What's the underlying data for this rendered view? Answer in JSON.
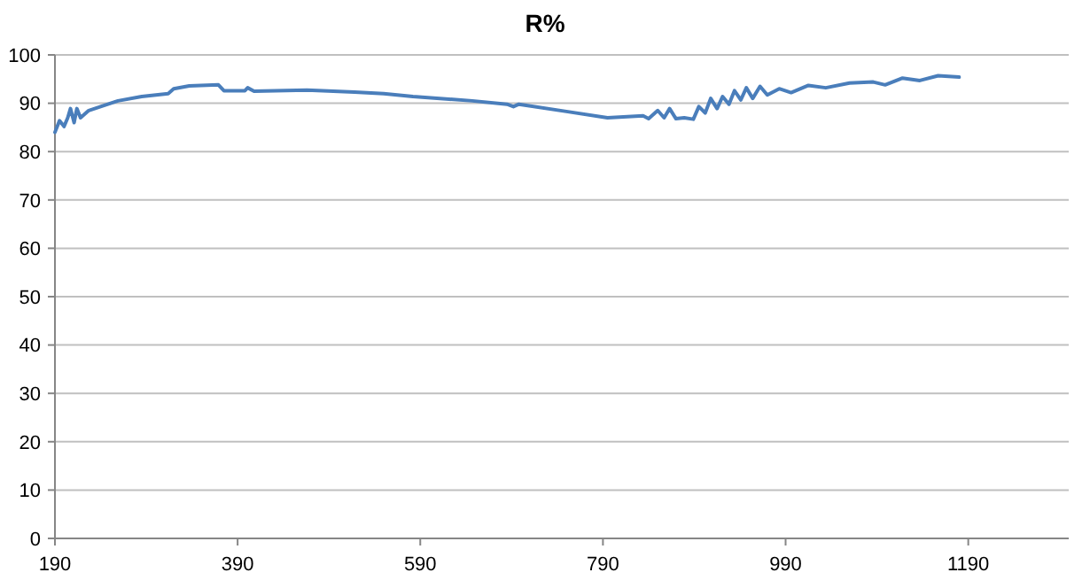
{
  "chart_data": {
    "type": "line",
    "title": "R%",
    "xlim": [
      190,
      1300
    ],
    "xticks": [
      190,
      390,
      590,
      790,
      990,
      1190
    ],
    "ylim": [
      0,
      100
    ],
    "yticks": [
      0,
      10,
      20,
      30,
      40,
      50,
      60,
      70,
      80,
      90,
      100
    ],
    "grid": "y",
    "marker": "none",
    "line_style": "solid",
    "series": [
      {
        "color": "#4a7ebb",
        "x": [
          190,
          195,
          200,
          204,
          207,
          211,
          214,
          218,
          227,
          240,
          259,
          285,
          314,
          320,
          337,
          369,
          375,
          398,
          401,
          408,
          466,
          518,
          550,
          582,
          647,
          685,
          692,
          698,
          750,
          795,
          834,
          840,
          850,
          857,
          863,
          870,
          879,
          889,
          895,
          902,
          908,
          915,
          921,
          928,
          934,
          941,
          947,
          954,
          962,
          970,
          983,
          996,
          1015,
          1034,
          1060,
          1086,
          1099,
          1118,
          1137,
          1157,
          1180
        ],
        "values": [
          84,
          86.4,
          85.2,
          87,
          88.9,
          86,
          88.9,
          87,
          88.5,
          89.3,
          90.5,
          91.4,
          92,
          93,
          93.6,
          93.8,
          92.6,
          92.6,
          93.2,
          92.5,
          92.7,
          92.3,
          92,
          91.4,
          90.5,
          89.8,
          89.3,
          89.8,
          88.3,
          87,
          87.4,
          86.8,
          88.5,
          87,
          88.9,
          86.8,
          87,
          86.7,
          89.3,
          88,
          91,
          88.9,
          91.4,
          89.8,
          92.6,
          90.7,
          93.2,
          91,
          93.5,
          91.7,
          93,
          92.2,
          93.7,
          93.2,
          94.2,
          94.4,
          93.8,
          95.2,
          94.7,
          95.7,
          95.4
        ]
      }
    ]
  }
}
